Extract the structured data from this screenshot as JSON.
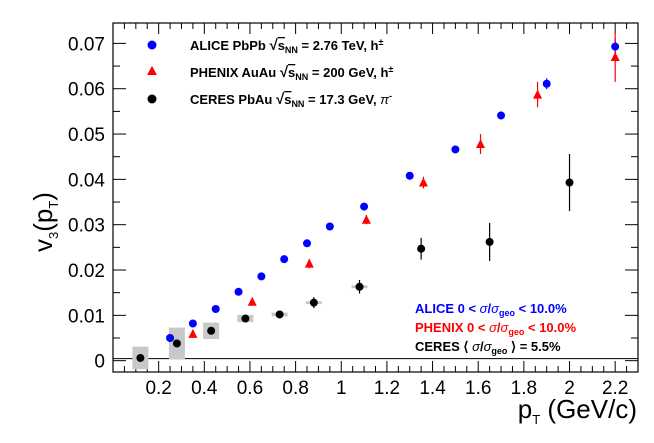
{
  "chart_data": {
    "type": "scatter",
    "xlabel": "p_T (GeV/c)",
    "ylabel": "v_3(p_T)",
    "xlim": [
      0,
      2.3
    ],
    "ylim": [
      -0.0025,
      0.0745
    ],
    "xticks": [
      0.2,
      0.4,
      0.6,
      0.8,
      1,
      1.2,
      1.4,
      1.6,
      1.8,
      2,
      2.2
    ],
    "xtick_labels": [
      "0.2",
      "0.4",
      "0.6",
      "0.8",
      "1",
      "1.2",
      "1.4",
      "1.6",
      "1.8",
      "2",
      "2.2"
    ],
    "yticks": [
      0,
      0.01,
      0.02,
      0.03,
      0.04,
      0.05,
      0.06,
      0.07
    ],
    "ytick_labels": [
      "0",
      "0.01",
      "0.02",
      "0.03",
      "0.04",
      "0.05",
      "0.06",
      "0.07"
    ],
    "zero_line": true,
    "legend_position": "top-left",
    "series": [
      {
        "name": "ALICE PbPb √sNN = 2.76 TeV, h±",
        "marker": "circle",
        "color": "#0000ff",
        "points": [
          {
            "x": 0.25,
            "y": 0.005
          },
          {
            "x": 0.35,
            "y": 0.0082
          },
          {
            "x": 0.45,
            "y": 0.0114
          },
          {
            "x": 0.55,
            "y": 0.0152
          },
          {
            "x": 0.65,
            "y": 0.0186
          },
          {
            "x": 0.75,
            "y": 0.0224
          },
          {
            "x": 0.85,
            "y": 0.0259
          },
          {
            "x": 0.95,
            "y": 0.0296
          },
          {
            "x": 1.1,
            "y": 0.034
          },
          {
            "x": 1.3,
            "y": 0.0408
          },
          {
            "x": 1.5,
            "y": 0.0466,
            "err": 0.0008
          },
          {
            "x": 1.7,
            "y": 0.0541,
            "err": 0.0009
          },
          {
            "x": 1.9,
            "y": 0.0611,
            "err": 0.0012
          },
          {
            "x": 2.2,
            "y": 0.0693,
            "err": 0.0017
          }
        ]
      },
      {
        "name": "PHENIX AuAu √sNN = 200 GeV, h±",
        "marker": "triangle",
        "color": "#ff0000",
        "points": [
          {
            "x": 0.35,
            "y": 0.0059
          },
          {
            "x": 0.61,
            "y": 0.013
          },
          {
            "x": 0.86,
            "y": 0.0214,
            "err": 0.001
          },
          {
            "x": 1.11,
            "y": 0.0311,
            "err": 0.001
          },
          {
            "x": 1.36,
            "y": 0.0393,
            "err": 0.0013
          },
          {
            "x": 1.61,
            "y": 0.0478,
            "err": 0.0022
          },
          {
            "x": 1.86,
            "y": 0.0587,
            "err": 0.0028
          },
          {
            "x": 2.2,
            "y": 0.067,
            "err": 0.0055
          }
        ]
      },
      {
        "name": "CERES PbAu √sNN = 17.3 GeV, π⁻",
        "marker": "circle",
        "color": "#000000",
        "points": [
          {
            "x": 0.12,
            "y": 0.0006,
            "err": 0.0002,
            "syst_dx": 0.035,
            "syst_dy": 0.0025
          },
          {
            "x": 0.28,
            "y": 0.0038,
            "err": 0.0002,
            "syst_dx": 0.035,
            "syst_dy": 0.0035
          },
          {
            "x": 0.43,
            "y": 0.0066,
            "err": 0.0003,
            "syst_dx": 0.035,
            "syst_dy": 0.0018
          },
          {
            "x": 0.58,
            "y": 0.0093,
            "err": 0.0005,
            "syst_dx": 0.035,
            "syst_dy": 0.0008
          },
          {
            "x": 0.73,
            "y": 0.0102,
            "err": 0.0008,
            "syst_dx": 0.035,
            "syst_dy": 0.0004
          },
          {
            "x": 0.88,
            "y": 0.0128,
            "err": 0.0012,
            "syst_dx": 0.035,
            "syst_dy": 0.0003
          },
          {
            "x": 1.08,
            "y": 0.0163,
            "err": 0.0015,
            "syst_dx": 0.035,
            "syst_dy": 0.0003
          },
          {
            "x": 1.35,
            "y": 0.0247,
            "err": 0.0024
          },
          {
            "x": 1.65,
            "y": 0.0262,
            "err": 0.0042
          },
          {
            "x": 2.0,
            "y": 0.0393,
            "err": 0.0063
          }
        ]
      }
    ],
    "annotations": [
      {
        "text": "ALICE 0 < σ/σgeo < 10.0%",
        "color": "#0000ff"
      },
      {
        "text": "PHENIX 0 < σ/σgeo < 10.0%",
        "color": "#ff0000"
      },
      {
        "text": "CERES ⟨ σ/σgeo ⟩ = 5.5%",
        "color": "#000000"
      }
    ]
  }
}
